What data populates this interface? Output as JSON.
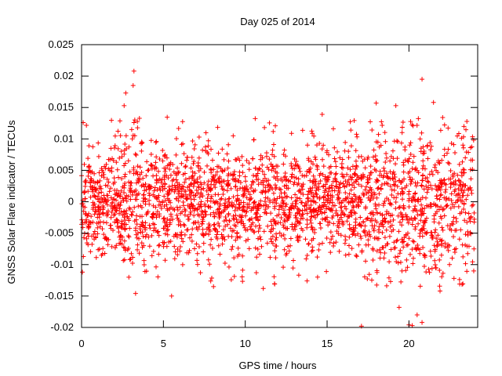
{
  "chart_data": {
    "type": "scatter",
    "title": "Day 025 of 2014",
    "xlabel": "GPS time / hours",
    "ylabel": "GNSS Solar Flare indicator / TECUs",
    "xlim": [
      0,
      24.2
    ],
    "ylim": [
      -0.02,
      0.025
    ],
    "x_ticks": [
      0,
      5,
      10,
      15,
      20
    ],
    "x_tick_labels": [
      "0",
      "5",
      "10",
      "15",
      "20"
    ],
    "y_ticks": [
      -0.02,
      -0.015,
      -0.01,
      -0.005,
      0,
      0.005,
      0.01,
      0.015,
      0.02,
      0.025
    ],
    "y_tick_labels": [
      "-0.02",
      "-0.015",
      "-0.01",
      "-0.005",
      "0",
      "0.005",
      "0.01",
      "0.015",
      "0.02",
      "0.025"
    ],
    "grid": false,
    "marker": "+",
    "series": [
      {
        "name": "GNSS Solar Flare indicator",
        "color": "#ff0000",
        "generator": {
          "count": 2600,
          "x_range": [
            0,
            24
          ],
          "sigma_base": 0.0045,
          "seed": 25
        },
        "points": [
          {
            "x": 3.2,
            "y": 0.0208
          },
          {
            "x": 3.15,
            "y": 0.0185
          },
          {
            "x": 2.7,
            "y": 0.0173
          },
          {
            "x": 2.6,
            "y": 0.0153
          },
          {
            "x": 20.8,
            "y": 0.0195
          },
          {
            "x": 18.0,
            "y": 0.0157
          },
          {
            "x": 19.2,
            "y": 0.0153
          },
          {
            "x": 21.5,
            "y": 0.0158
          },
          {
            "x": 14.7,
            "y": 0.0139
          },
          {
            "x": 0.1,
            "y": 0.0126
          },
          {
            "x": 5.5,
            "y": -0.015
          },
          {
            "x": 3.3,
            "y": -0.0146
          },
          {
            "x": 17.1,
            "y": -0.0198
          },
          {
            "x": 19.4,
            "y": -0.0168
          },
          {
            "x": 20.0,
            "y": -0.0196
          },
          {
            "x": 20.2,
            "y": -0.0197
          },
          {
            "x": 20.5,
            "y": -0.018
          },
          {
            "x": 20.8,
            "y": -0.0192
          },
          {
            "x": 21.9,
            "y": -0.0142
          },
          {
            "x": 0.05,
            "y": -0.0112
          },
          {
            "x": 11.1,
            "y": -0.0138
          },
          {
            "x": 11.8,
            "y": -0.0131
          },
          {
            "x": 23.1,
            "y": -0.0131
          }
        ]
      }
    ]
  }
}
